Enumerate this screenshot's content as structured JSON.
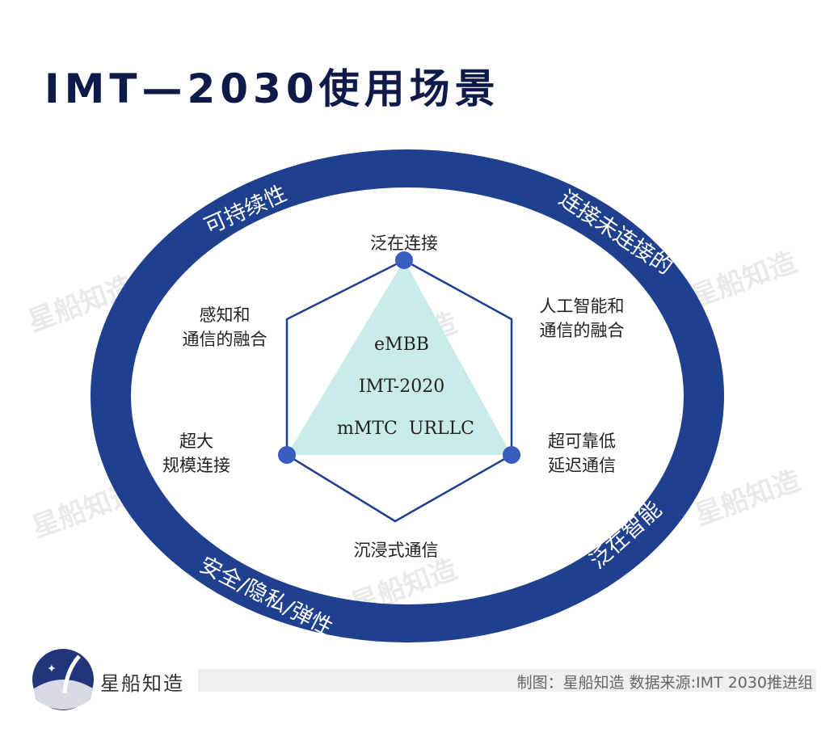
{
  "title": "IMT—2030使用场景",
  "ring_labels": {
    "top_left": "可持续性",
    "top_right": "连接未连接的",
    "bottom_right": "泛在智能",
    "bottom_left": "安全/隐私/弹性"
  },
  "scenarios": {
    "top": "泛在连接",
    "upper_left": [
      "感知和",
      "通信的融合"
    ],
    "upper_right": [
      "人工智能和",
      "通信的融合"
    ],
    "lower_left": [
      "超大",
      "规模连接"
    ],
    "lower_right": [
      "超可靠低",
      "延迟通信"
    ],
    "bottom": "沉浸式通信"
  },
  "center": {
    "line1": "eMBB",
    "line2": "IMT-2020",
    "line3": "mMTC  URLLC"
  },
  "watermark": "星船知造",
  "footer": {
    "brand": "星船知造",
    "credit": "制图：星船知造 数据来源:IMT 2030推进组"
  },
  "colors": {
    "ring": "#1f3f8f",
    "triangle": "#c9ece8",
    "dot": "#3a5cc0",
    "title": "#0e1a4a"
  }
}
